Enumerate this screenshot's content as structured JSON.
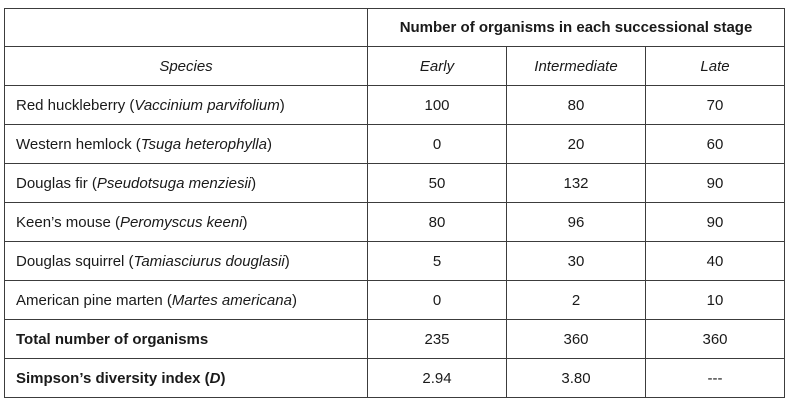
{
  "table": {
    "group_header": "Number of organisms in each successional stage",
    "species_header": "Species",
    "stages": [
      "Early",
      "Intermediate",
      "Late"
    ],
    "rows": [
      {
        "common": "Red huckleberry (",
        "scientific": "Vaccinium parvifolium",
        "close": ")",
        "values": [
          "100",
          "80",
          "70"
        ]
      },
      {
        "common": "Western hemlock (",
        "scientific": "Tsuga heterophylla",
        "close": ")",
        "values": [
          "0",
          "20",
          "60"
        ]
      },
      {
        "common": "Douglas fir (",
        "scientific": "Pseudotsuga menziesii",
        "close": ")",
        "values": [
          "50",
          "132",
          "90"
        ]
      },
      {
        "common": "Keen’s mouse (",
        "scientific": "Peromyscus keeni",
        "close": ")",
        "values": [
          "80",
          "96",
          "90"
        ]
      },
      {
        "common": "Douglas squirrel (",
        "scientific": "Tamiasciurus douglasii",
        "close": ")",
        "values": [
          "5",
          "30",
          "40"
        ]
      },
      {
        "common": "American pine marten (",
        "scientific": "Martes americana",
        "close": ")",
        "values": [
          "0",
          "2",
          "10"
        ]
      }
    ],
    "total": {
      "label": "Total number of organisms",
      "values": [
        "235",
        "360",
        "360"
      ]
    },
    "simpson": {
      "label_before": "Simpson’s diversity index (",
      "symbol": "D",
      "label_after": ")",
      "values": [
        "2.94",
        "3.80",
        "---"
      ]
    }
  }
}
